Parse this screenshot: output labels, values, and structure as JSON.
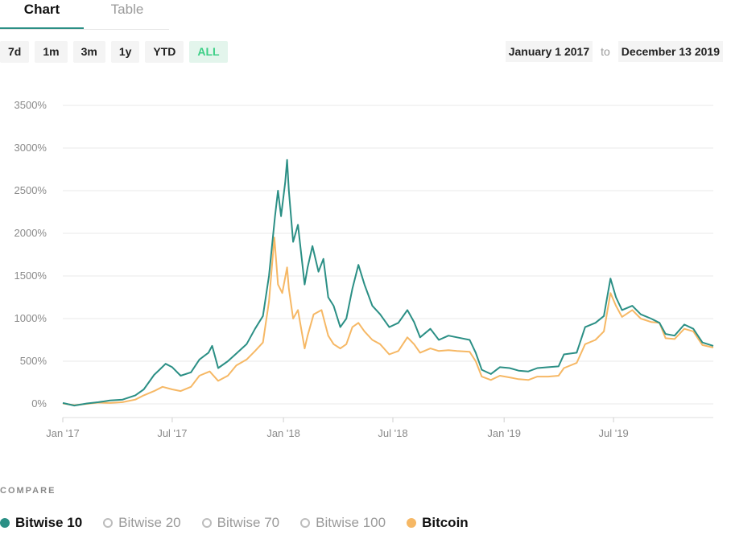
{
  "tabs": [
    {
      "label": "Chart"
    },
    {
      "label": "Table"
    }
  ],
  "ranges": [
    {
      "label": "7d"
    },
    {
      "label": "1m"
    },
    {
      "label": "3m"
    },
    {
      "label": "1y"
    },
    {
      "label": "YTD"
    },
    {
      "label": "ALL"
    }
  ],
  "active_range": "ALL",
  "date_range": {
    "from": "January 1 2017",
    "to_word": "to",
    "to": "December 13 2019"
  },
  "compare": {
    "label": "COMPARE",
    "items": [
      {
        "label": "Bitwise 10",
        "selected": true,
        "color": "#2b8f85"
      },
      {
        "label": "Bitwise 20",
        "selected": false,
        "color": "#bdbdbd"
      },
      {
        "label": "Bitwise 70",
        "selected": false,
        "color": "#bdbdbd"
      },
      {
        "label": "Bitwise 100",
        "selected": false,
        "color": "#bdbdbd"
      },
      {
        "label": "Bitcoin",
        "selected": true,
        "color": "#f6b865"
      }
    ]
  },
  "chart_data": {
    "type": "line",
    "title": "",
    "xlabel": "",
    "ylabel": "",
    "ylim": [
      0,
      3500
    ],
    "xlim": [
      "2017-01-01",
      "2019-12-13"
    ],
    "y_ticks": [
      "0%",
      "500%",
      "1000%",
      "1500%",
      "2000%",
      "2500%",
      "3000%",
      "3500%"
    ],
    "y_tick_values": [
      0,
      500,
      1000,
      1500,
      2000,
      2500,
      3000,
      3500
    ],
    "x_ticks": [
      "Jan '17",
      "Jul '17",
      "Jan '18",
      "Jul '18",
      "Jan '19",
      "Jul '19"
    ],
    "x_tick_dates": [
      "2017-01-01",
      "2017-07-01",
      "2018-01-01",
      "2018-07-01",
      "2019-01-01",
      "2019-07-01"
    ],
    "grid": true,
    "series": [
      {
        "name": "Bitwise 10",
        "color": "#2b8f85",
        "points": [
          [
            "2017-01-01",
            10
          ],
          [
            "2017-01-20",
            -20
          ],
          [
            "2017-02-10",
            5
          ],
          [
            "2017-03-01",
            20
          ],
          [
            "2017-03-20",
            40
          ],
          [
            "2017-04-10",
            50
          ],
          [
            "2017-05-01",
            100
          ],
          [
            "2017-05-15",
            170
          ],
          [
            "2017-06-01",
            340
          ],
          [
            "2017-06-10",
            400
          ],
          [
            "2017-06-20",
            470
          ],
          [
            "2017-07-01",
            430
          ],
          [
            "2017-07-15",
            330
          ],
          [
            "2017-08-01",
            370
          ],
          [
            "2017-08-15",
            520
          ],
          [
            "2017-08-30",
            600
          ],
          [
            "2017-09-05",
            680
          ],
          [
            "2017-09-15",
            420
          ],
          [
            "2017-10-01",
            500
          ],
          [
            "2017-10-15",
            590
          ],
          [
            "2017-11-01",
            700
          ],
          [
            "2017-11-15",
            880
          ],
          [
            "2017-11-28",
            1030
          ],
          [
            "2017-12-08",
            1500
          ],
          [
            "2017-12-18",
            2200
          ],
          [
            "2017-12-23",
            2500
          ],
          [
            "2017-12-28",
            2200
          ],
          [
            "2018-01-04",
            2600
          ],
          [
            "2018-01-07",
            2860
          ],
          [
            "2018-01-10",
            2500
          ],
          [
            "2018-01-17",
            1900
          ],
          [
            "2018-01-25",
            2100
          ],
          [
            "2018-02-05",
            1400
          ],
          [
            "2018-02-10",
            1600
          ],
          [
            "2018-02-18",
            1850
          ],
          [
            "2018-02-28",
            1550
          ],
          [
            "2018-03-08",
            1700
          ],
          [
            "2018-03-16",
            1250
          ],
          [
            "2018-03-25",
            1150
          ],
          [
            "2018-04-05",
            900
          ],
          [
            "2018-04-15",
            1000
          ],
          [
            "2018-04-25",
            1350
          ],
          [
            "2018-05-05",
            1630
          ],
          [
            "2018-05-15",
            1400
          ],
          [
            "2018-05-28",
            1150
          ],
          [
            "2018-06-10",
            1050
          ],
          [
            "2018-06-25",
            900
          ],
          [
            "2018-07-10",
            950
          ],
          [
            "2018-07-25",
            1100
          ],
          [
            "2018-08-05",
            960
          ],
          [
            "2018-08-15",
            780
          ],
          [
            "2018-09-01",
            880
          ],
          [
            "2018-09-15",
            750
          ],
          [
            "2018-10-01",
            800
          ],
          [
            "2018-10-15",
            780
          ],
          [
            "2018-11-05",
            750
          ],
          [
            "2018-11-15",
            600
          ],
          [
            "2018-11-25",
            400
          ],
          [
            "2018-12-10",
            350
          ],
          [
            "2018-12-25",
            430
          ],
          [
            "2019-01-10",
            420
          ],
          [
            "2019-01-25",
            390
          ],
          [
            "2019-02-10",
            380
          ],
          [
            "2019-02-25",
            420
          ],
          [
            "2019-03-15",
            430
          ],
          [
            "2019-04-01",
            440
          ],
          [
            "2019-04-10",
            580
          ],
          [
            "2019-05-01",
            600
          ],
          [
            "2019-05-15",
            900
          ],
          [
            "2019-06-01",
            950
          ],
          [
            "2019-06-15",
            1030
          ],
          [
            "2019-06-26",
            1470
          ],
          [
            "2019-07-05",
            1250
          ],
          [
            "2019-07-15",
            1100
          ],
          [
            "2019-08-01",
            1150
          ],
          [
            "2019-08-15",
            1050
          ],
          [
            "2019-09-01",
            1000
          ],
          [
            "2019-09-15",
            950
          ],
          [
            "2019-09-25",
            820
          ],
          [
            "2019-10-10",
            800
          ],
          [
            "2019-10-26",
            930
          ],
          [
            "2019-11-10",
            880
          ],
          [
            "2019-11-25",
            720
          ],
          [
            "2019-12-13",
            680
          ]
        ]
      },
      {
        "name": "Bitcoin",
        "color": "#f6b865",
        "points": [
          [
            "2017-01-01",
            5
          ],
          [
            "2017-01-20",
            -15
          ],
          [
            "2017-02-10",
            0
          ],
          [
            "2017-03-01",
            15
          ],
          [
            "2017-03-20",
            10
          ],
          [
            "2017-04-10",
            20
          ],
          [
            "2017-05-01",
            50
          ],
          [
            "2017-05-15",
            100
          ],
          [
            "2017-06-01",
            150
          ],
          [
            "2017-06-15",
            200
          ],
          [
            "2017-07-01",
            170
          ],
          [
            "2017-07-15",
            150
          ],
          [
            "2017-08-01",
            200
          ],
          [
            "2017-08-15",
            330
          ],
          [
            "2017-09-01",
            380
          ],
          [
            "2017-09-15",
            270
          ],
          [
            "2017-10-01",
            330
          ],
          [
            "2017-10-15",
            450
          ],
          [
            "2017-11-01",
            520
          ],
          [
            "2017-11-15",
            620
          ],
          [
            "2017-11-28",
            720
          ],
          [
            "2017-12-08",
            1200
          ],
          [
            "2017-12-17",
            1950
          ],
          [
            "2017-12-23",
            1400
          ],
          [
            "2017-12-30",
            1300
          ],
          [
            "2018-01-07",
            1600
          ],
          [
            "2018-01-10",
            1350
          ],
          [
            "2018-01-17",
            1000
          ],
          [
            "2018-01-25",
            1100
          ],
          [
            "2018-02-05",
            650
          ],
          [
            "2018-02-10",
            800
          ],
          [
            "2018-02-20",
            1050
          ],
          [
            "2018-03-05",
            1100
          ],
          [
            "2018-03-16",
            800
          ],
          [
            "2018-03-25",
            700
          ],
          [
            "2018-04-05",
            650
          ],
          [
            "2018-04-15",
            700
          ],
          [
            "2018-04-25",
            900
          ],
          [
            "2018-05-05",
            950
          ],
          [
            "2018-05-15",
            850
          ],
          [
            "2018-05-28",
            750
          ],
          [
            "2018-06-10",
            700
          ],
          [
            "2018-06-25",
            580
          ],
          [
            "2018-07-10",
            620
          ],
          [
            "2018-07-25",
            780
          ],
          [
            "2018-08-05",
            700
          ],
          [
            "2018-08-15",
            600
          ],
          [
            "2018-09-01",
            650
          ],
          [
            "2018-09-15",
            620
          ],
          [
            "2018-10-01",
            630
          ],
          [
            "2018-10-15",
            620
          ],
          [
            "2018-11-05",
            610
          ],
          [
            "2018-11-15",
            500
          ],
          [
            "2018-11-25",
            320
          ],
          [
            "2018-12-10",
            280
          ],
          [
            "2018-12-25",
            330
          ],
          [
            "2019-01-10",
            310
          ],
          [
            "2019-01-25",
            290
          ],
          [
            "2019-02-10",
            280
          ],
          [
            "2019-02-25",
            320
          ],
          [
            "2019-03-15",
            320
          ],
          [
            "2019-04-01",
            330
          ],
          [
            "2019-04-10",
            420
          ],
          [
            "2019-05-01",
            480
          ],
          [
            "2019-05-15",
            700
          ],
          [
            "2019-06-01",
            750
          ],
          [
            "2019-06-15",
            850
          ],
          [
            "2019-06-26",
            1300
          ],
          [
            "2019-07-05",
            1150
          ],
          [
            "2019-07-15",
            1020
          ],
          [
            "2019-08-01",
            1100
          ],
          [
            "2019-08-15",
            1000
          ],
          [
            "2019-09-01",
            960
          ],
          [
            "2019-09-15",
            950
          ],
          [
            "2019-09-25",
            770
          ],
          [
            "2019-10-10",
            760
          ],
          [
            "2019-10-26",
            880
          ],
          [
            "2019-11-10",
            850
          ],
          [
            "2019-11-25",
            690
          ],
          [
            "2019-12-13",
            660
          ]
        ]
      }
    ]
  }
}
